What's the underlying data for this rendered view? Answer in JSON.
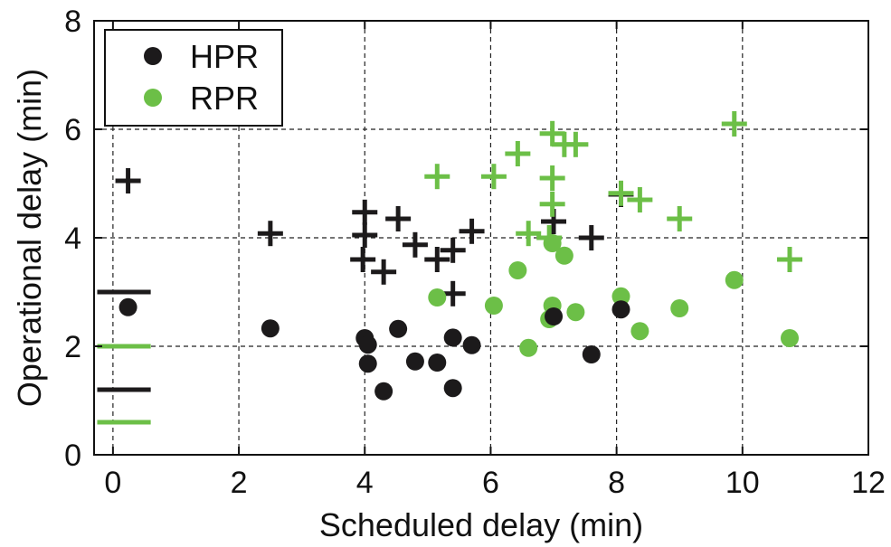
{
  "chart_data": {
    "type": "scatter",
    "xlabel": "Scheduled delay (min)",
    "ylabel": "Operational delay (min)",
    "xlim": [
      -0.3,
      12
    ],
    "ylim": [
      0,
      8
    ],
    "xticks": [
      "0",
      "2",
      "4",
      "6",
      "8",
      "10",
      "12"
    ],
    "yticks": [
      "0",
      "2",
      "4",
      "6",
      "8"
    ],
    "grid": true,
    "legend_position": "top-left",
    "legend": [
      {
        "label": "HPR",
        "color": "#1c1a1b"
      },
      {
        "label": "RPR",
        "color": "#6cbf47"
      }
    ],
    "series": [
      {
        "name": "HPR",
        "color": "#1c1a1b",
        "marker": "circle",
        "points": [
          [
            0.24,
            2.72
          ],
          [
            2.5,
            2.33
          ],
          [
            4.0,
            2.15
          ],
          [
            4.05,
            2.03
          ],
          [
            4.05,
            1.68
          ],
          [
            4.3,
            1.17
          ],
          [
            4.53,
            2.32
          ],
          [
            4.8,
            1.72
          ],
          [
            5.15,
            1.7
          ],
          [
            5.4,
            2.16
          ],
          [
            5.4,
            1.23
          ],
          [
            5.7,
            2.02
          ],
          [
            7.0,
            2.55
          ],
          [
            7.6,
            1.85
          ],
          [
            8.07,
            2.68
          ]
        ]
      },
      {
        "name": "HPR",
        "color": "#1c1a1b",
        "marker": "plus",
        "points": [
          [
            0.24,
            5.05
          ],
          [
            2.5,
            4.08
          ],
          [
            3.97,
            3.6
          ],
          [
            4.0,
            4.47
          ],
          [
            4.0,
            4.05
          ],
          [
            4.3,
            3.37
          ],
          [
            4.53,
            4.35
          ],
          [
            4.8,
            3.87
          ],
          [
            5.15,
            3.6
          ],
          [
            5.4,
            3.77
          ],
          [
            5.4,
            2.97
          ],
          [
            5.7,
            4.12
          ],
          [
            7.0,
            4.3
          ],
          [
            7.6,
            4.0
          ],
          [
            8.07,
            4.8
          ]
        ]
      },
      {
        "name": "RPR",
        "color": "#6cbf47",
        "marker": "circle",
        "points": [
          [
            5.15,
            2.9
          ],
          [
            6.05,
            2.75
          ],
          [
            6.43,
            3.4
          ],
          [
            6.6,
            1.97
          ],
          [
            6.93,
            2.5
          ],
          [
            6.98,
            2.75
          ],
          [
            6.98,
            3.9
          ],
          [
            7.17,
            3.67
          ],
          [
            7.35,
            2.63
          ],
          [
            8.07,
            2.92
          ],
          [
            8.37,
            2.28
          ],
          [
            9.0,
            2.7
          ],
          [
            9.87,
            3.22
          ],
          [
            10.75,
            2.15
          ]
        ]
      },
      {
        "name": "RPR",
        "color": "#6cbf47",
        "marker": "plus",
        "points": [
          [
            5.15,
            5.13
          ],
          [
            6.05,
            5.13
          ],
          [
            6.43,
            5.55
          ],
          [
            6.6,
            4.08
          ],
          [
            6.93,
            4.0
          ],
          [
            6.98,
            5.1
          ],
          [
            6.98,
            4.62
          ],
          [
            6.98,
            5.92
          ],
          [
            7.17,
            5.72
          ],
          [
            7.35,
            5.72
          ],
          [
            8.07,
            4.82
          ],
          [
            8.37,
            4.7
          ],
          [
            9.0,
            4.35
          ],
          [
            9.87,
            6.1
          ],
          [
            10.75,
            3.6
          ]
        ]
      }
    ],
    "reference_lines": [
      {
        "color": "#1c1a1b",
        "y": 3.0,
        "x_range": [
          -0.25,
          0.6
        ]
      },
      {
        "color": "#6cbf47",
        "y": 2.0,
        "x_range": [
          -0.25,
          0.6
        ]
      },
      {
        "color": "#1c1a1b",
        "y": 1.2,
        "x_range": [
          -0.25,
          0.6
        ]
      },
      {
        "color": "#6cbf47",
        "y": 0.6,
        "x_range": [
          -0.25,
          0.6
        ]
      }
    ]
  }
}
